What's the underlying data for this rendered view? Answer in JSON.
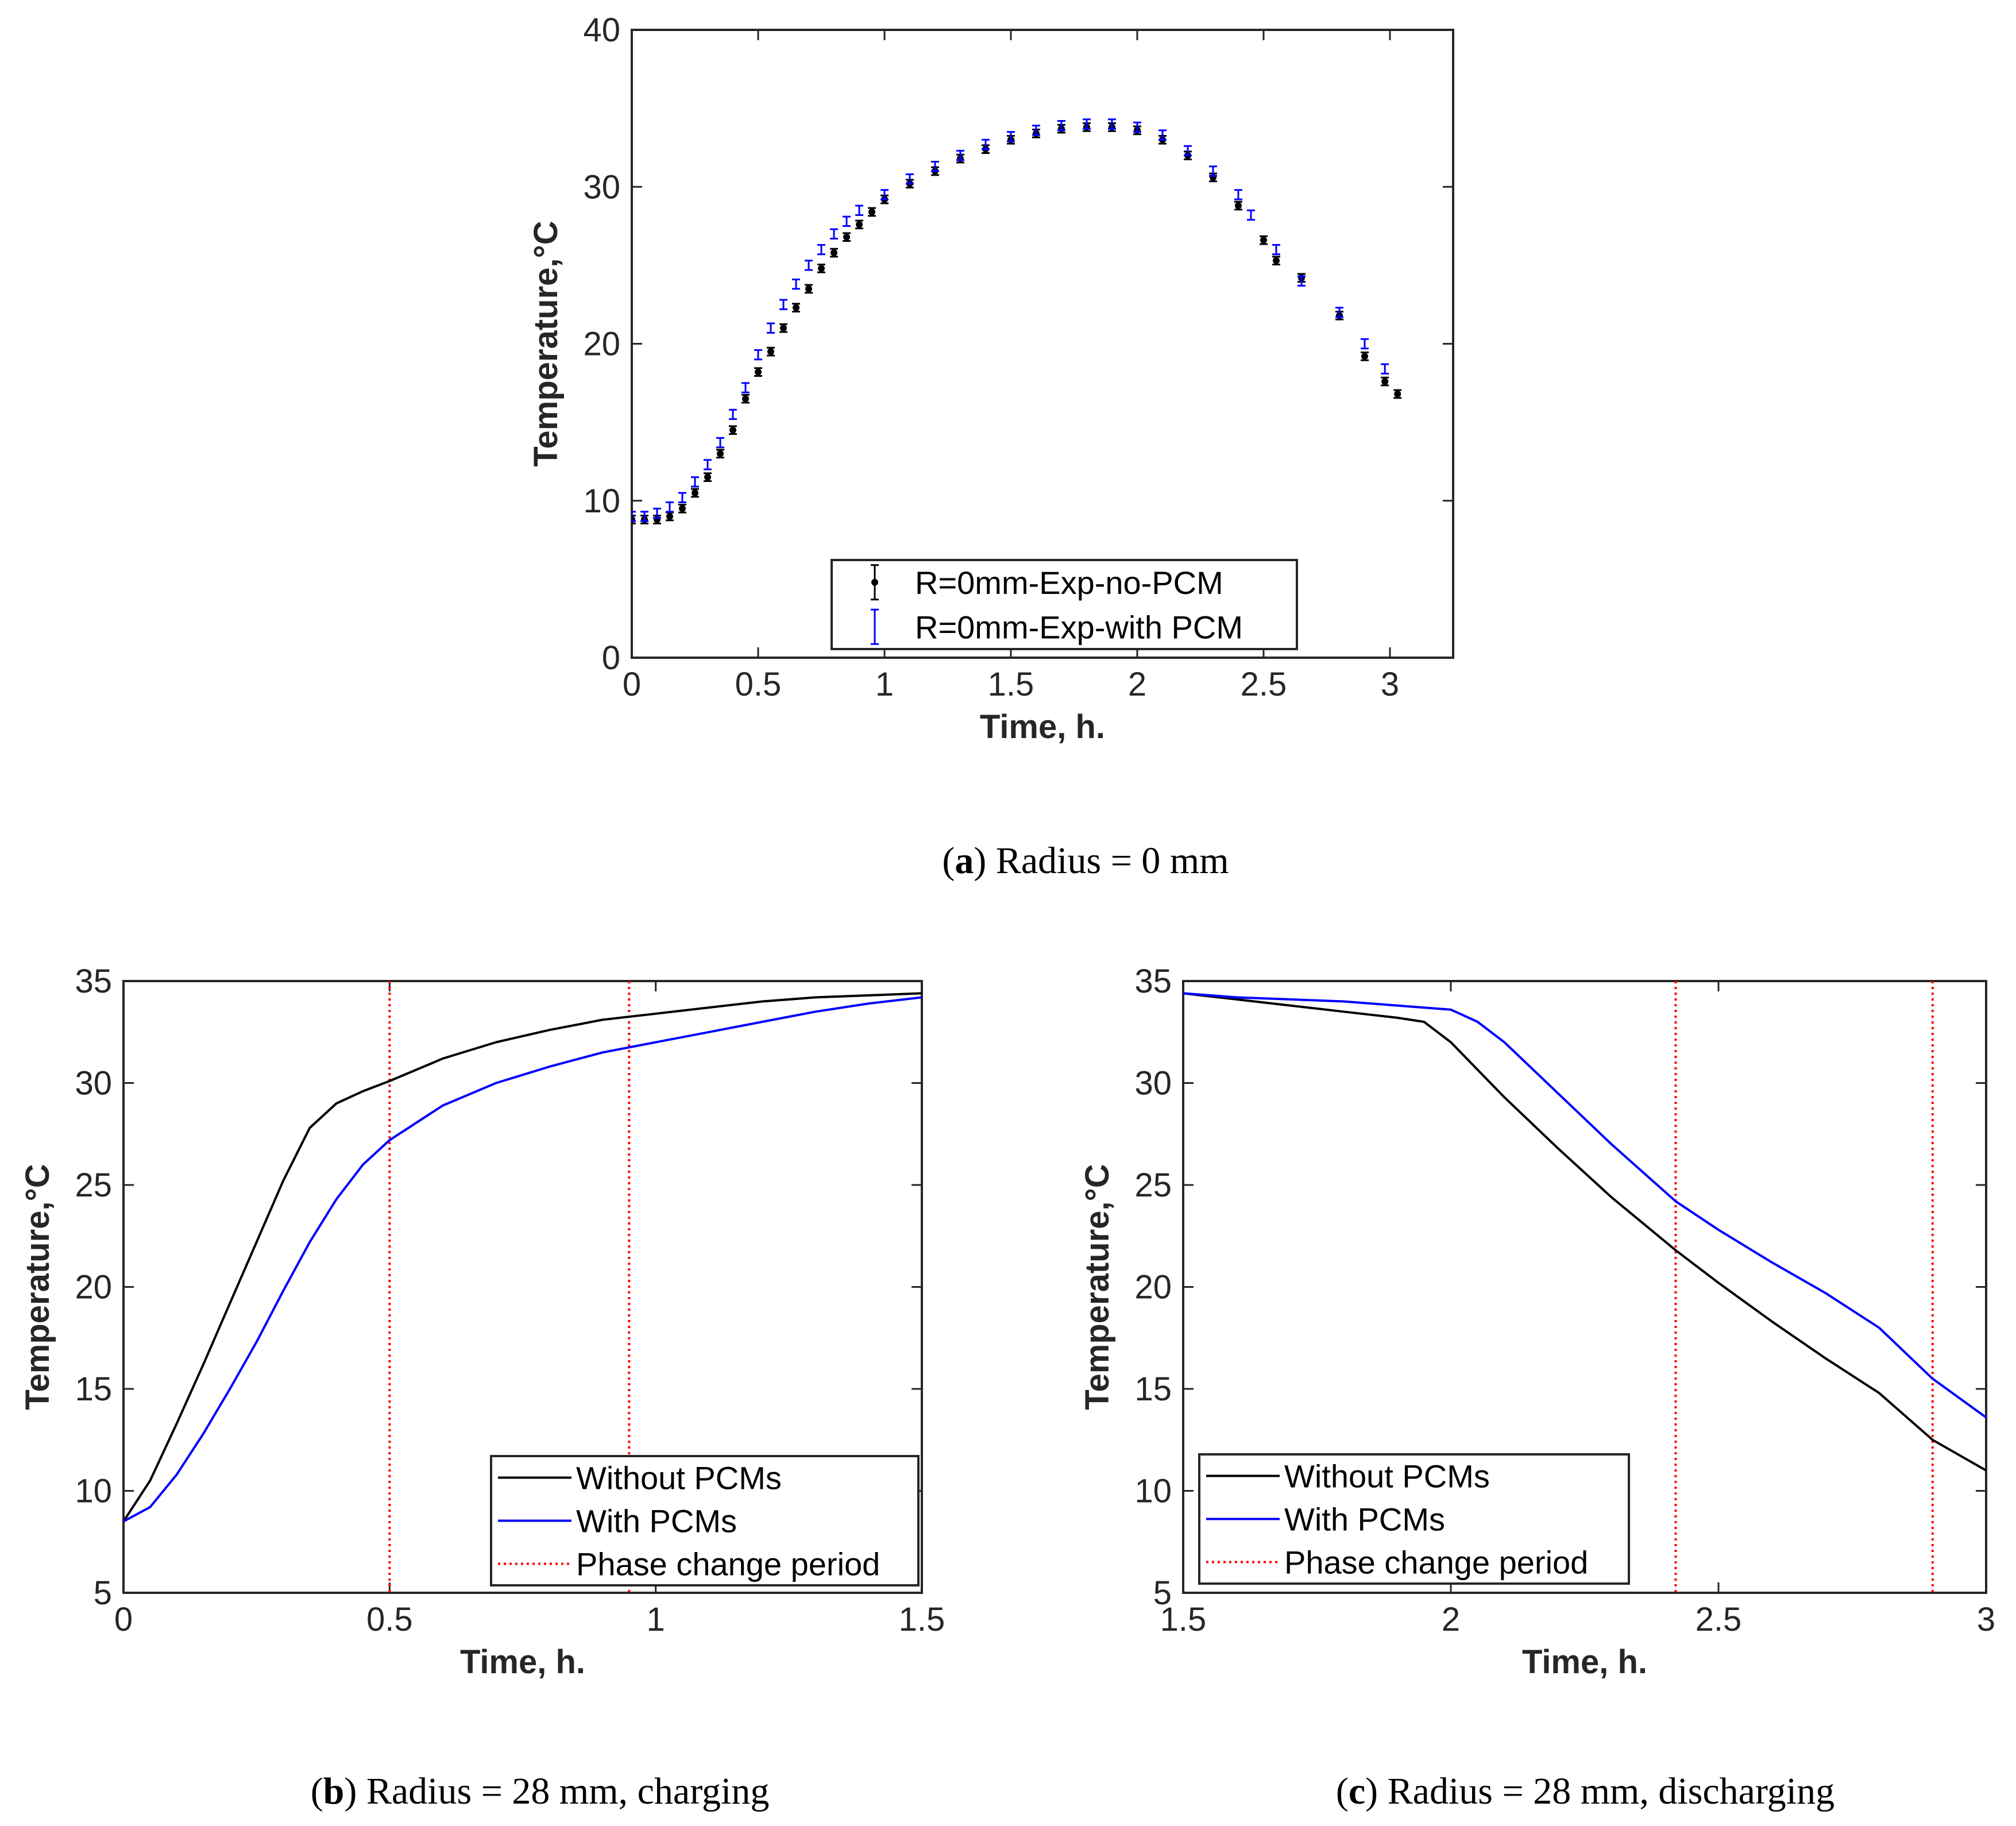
{
  "figure": {
    "captions": [
      {
        "letter": "a",
        "text": ") Radius = 0 mm"
      },
      {
        "letter": "b",
        "text": ") Radius = 28 mm, charging"
      },
      {
        "letter": "c",
        "text": ") Radius = 28 mm, discharging"
      }
    ]
  },
  "colors": {
    "black_series": "#000000",
    "blue_series": "#0000ff",
    "phase_line": "#ff0000",
    "axis": "#262626"
  },
  "chart_data": [
    {
      "id": "a",
      "type": "scatter",
      "title": "",
      "xlabel": "Time, h.",
      "ylabel": "Temperature,°C",
      "xlim": [
        0,
        3.25
      ],
      "ylim": [
        0,
        40
      ],
      "xticks": [
        0,
        0.5,
        1,
        1.5,
        2,
        2.5,
        3
      ],
      "xtick_labels": [
        "0",
        "0.5",
        "1",
        "1.5",
        "2",
        "2.5",
        "3"
      ],
      "yticks": [
        0,
        10,
        20,
        30,
        40
      ],
      "ytick_labels": [
        "0",
        "10",
        "20",
        "30",
        "40"
      ],
      "legend_position": "bottom-right",
      "series": [
        {
          "name": "R=0mm-Exp-no-PCM",
          "color": "#000000",
          "style": "errorbar-dot",
          "x": [
            0,
            0.05,
            0.1,
            0.15,
            0.2,
            0.25,
            0.3,
            0.35,
            0.4,
            0.45,
            0.5,
            0.55,
            0.6,
            0.65,
            0.7,
            0.75,
            0.8,
            0.85,
            0.9,
            0.95,
            1.0,
            1.1,
            1.2,
            1.3,
            1.4,
            1.5,
            1.6,
            1.7,
            1.8,
            1.9,
            2.0,
            2.1,
            2.2,
            2.3,
            2.4,
            2.5,
            2.55,
            2.65,
            2.8,
            2.9,
            2.98,
            3.03
          ],
          "y": [
            8.8,
            8.8,
            8.8,
            9.0,
            9.5,
            10.5,
            11.5,
            13.0,
            14.5,
            16.5,
            18.2,
            19.5,
            21.0,
            22.3,
            23.5,
            24.8,
            25.8,
            26.8,
            27.6,
            28.4,
            29.2,
            30.2,
            31.0,
            31.8,
            32.4,
            33.0,
            33.4,
            33.7,
            33.8,
            33.8,
            33.6,
            33.0,
            32.0,
            30.6,
            28.8,
            26.6,
            25.3,
            24.2,
            21.8,
            19.2,
            17.6,
            16.8
          ],
          "err": [
            0.25,
            0.25,
            0.25,
            0.25,
            0.25,
            0.25,
            0.25,
            0.25,
            0.25,
            0.25,
            0.25,
            0.25,
            0.25,
            0.25,
            0.25,
            0.25,
            0.25,
            0.25,
            0.25,
            0.25,
            0.25,
            0.25,
            0.25,
            0.25,
            0.25,
            0.25,
            0.25,
            0.25,
            0.25,
            0.25,
            0.25,
            0.25,
            0.25,
            0.25,
            0.25,
            0.25,
            0.25,
            0.25,
            0.25,
            0.25,
            0.25,
            0.25
          ]
        },
        {
          "name": "R=0mm-Exp-with PCM",
          "color": "#0000ff",
          "style": "errorbar",
          "x": [
            0,
            0.05,
            0.1,
            0.15,
            0.2,
            0.25,
            0.3,
            0.35,
            0.4,
            0.45,
            0.5,
            0.55,
            0.6,
            0.65,
            0.7,
            0.75,
            0.8,
            0.85,
            0.9,
            1.0,
            1.1,
            1.2,
            1.3,
            1.4,
            1.5,
            1.6,
            1.7,
            1.8,
            1.9,
            2.0,
            2.1,
            2.2,
            2.3,
            2.4,
            2.45,
            2.55,
            2.65,
            2.8,
            2.9,
            2.98
          ],
          "y": [
            9.0,
            9.0,
            9.2,
            9.6,
            10.2,
            11.2,
            12.3,
            13.7,
            15.5,
            17.2,
            19.3,
            21.0,
            22.5,
            23.8,
            25.0,
            26.0,
            27.0,
            27.8,
            28.5,
            29.5,
            30.5,
            31.3,
            32.0,
            32.7,
            33.2,
            33.6,
            33.9,
            34.0,
            34.0,
            33.8,
            33.3,
            32.3,
            31.0,
            29.5,
            28.2,
            26.0,
            24.0,
            22.0,
            20.0,
            18.4
          ],
          "err": [
            0.3,
            0.3,
            0.3,
            0.3,
            0.3,
            0.3,
            0.3,
            0.3,
            0.3,
            0.3,
            0.3,
            0.3,
            0.3,
            0.3,
            0.3,
            0.3,
            0.3,
            0.3,
            0.3,
            0.3,
            0.3,
            0.3,
            0.3,
            0.3,
            0.3,
            0.3,
            0.3,
            0.3,
            0.3,
            0.3,
            0.3,
            0.3,
            0.3,
            0.3,
            0.3,
            0.3,
            0.3,
            0.3,
            0.3,
            0.3
          ]
        }
      ]
    },
    {
      "id": "b",
      "type": "line",
      "title": "",
      "xlabel": "Time, h.",
      "ylabel": "Temperature,°C",
      "xlim": [
        0,
        1.5
      ],
      "ylim": [
        5,
        35
      ],
      "xticks": [
        0,
        0.5,
        1,
        1.5
      ],
      "xtick_labels": [
        "0",
        "0.5",
        "1",
        "1.5"
      ],
      "yticks": [
        5,
        10,
        15,
        20,
        25,
        30,
        35
      ],
      "ytick_labels": [
        "5",
        "10",
        "15",
        "20",
        "25",
        "30",
        "35"
      ],
      "legend_position": "bottom-right",
      "phase_change_period": [
        0.5,
        0.95
      ],
      "series": [
        {
          "name": "Without PCMs",
          "color": "#000000",
          "x": [
            0,
            0.05,
            0.1,
            0.15,
            0.2,
            0.25,
            0.3,
            0.35,
            0.4,
            0.45,
            0.5,
            0.6,
            0.7,
            0.8,
            0.9,
            1.0,
            1.1,
            1.2,
            1.3,
            1.4,
            1.5
          ],
          "y": [
            8.5,
            10.5,
            13.3,
            16.2,
            19.2,
            22.2,
            25.2,
            27.8,
            29.0,
            29.6,
            30.1,
            31.2,
            32.0,
            32.6,
            33.1,
            33.4,
            33.7,
            34.0,
            34.2,
            34.3,
            34.4
          ]
        },
        {
          "name": "With PCMs",
          "color": "#0000ff",
          "x": [
            0,
            0.05,
            0.1,
            0.15,
            0.2,
            0.25,
            0.3,
            0.35,
            0.4,
            0.45,
            0.5,
            0.6,
            0.7,
            0.8,
            0.9,
            1.0,
            1.1,
            1.2,
            1.3,
            1.4,
            1.5
          ],
          "y": [
            8.5,
            9.2,
            10.8,
            12.8,
            15.0,
            17.3,
            19.8,
            22.2,
            24.3,
            26.0,
            27.2,
            28.9,
            30.0,
            30.8,
            31.5,
            32.0,
            32.5,
            33.0,
            33.5,
            33.9,
            34.2
          ]
        }
      ]
    },
    {
      "id": "c",
      "type": "line",
      "title": "",
      "xlabel": "Time, h.",
      "ylabel": "Temperature,°C",
      "xlim": [
        1.5,
        3
      ],
      "ylim": [
        5,
        35
      ],
      "xticks": [
        1.5,
        2,
        2.5,
        3
      ],
      "xtick_labels": [
        "1.5",
        "2",
        "2.5",
        "3"
      ],
      "yticks": [
        5,
        10,
        15,
        20,
        25,
        30,
        35
      ],
      "ytick_labels": [
        "5",
        "10",
        "15",
        "20",
        "25",
        "30",
        "35"
      ],
      "legend_position": "bottom-left",
      "phase_change_period": [
        2.42,
        2.9
      ],
      "series": [
        {
          "name": "Without PCMs",
          "color": "#000000",
          "x": [
            1.5,
            1.6,
            1.7,
            1.8,
            1.9,
            1.95,
            2.0,
            2.1,
            2.2,
            2.3,
            2.42,
            2.5,
            2.6,
            2.7,
            2.8,
            2.9,
            3.0
          ],
          "y": [
            34.4,
            34.1,
            33.8,
            33.5,
            33.2,
            33.0,
            32.0,
            29.3,
            26.8,
            24.4,
            21.8,
            20.2,
            18.3,
            16.5,
            14.8,
            12.5,
            11.0
          ]
        },
        {
          "name": "With PCMs",
          "color": "#0000ff",
          "x": [
            1.5,
            1.6,
            1.7,
            1.8,
            1.9,
            2.0,
            2.05,
            2.1,
            2.2,
            2.3,
            2.42,
            2.5,
            2.6,
            2.7,
            2.8,
            2.9,
            3.0
          ],
          "y": [
            34.4,
            34.2,
            34.1,
            34.0,
            33.8,
            33.6,
            33.0,
            32.0,
            29.5,
            27.0,
            24.2,
            22.8,
            21.2,
            19.7,
            18.0,
            15.5,
            13.6
          ]
        }
      ]
    }
  ],
  "legend_labels": {
    "a": [
      "R=0mm-Exp-no-PCM",
      "R=0mm-Exp-with PCM"
    ],
    "b": [
      "Without PCMs",
      "With PCMs",
      "Phase change period"
    ],
    "c": [
      "Without PCMs",
      "With PCMs",
      "Phase change period"
    ]
  }
}
